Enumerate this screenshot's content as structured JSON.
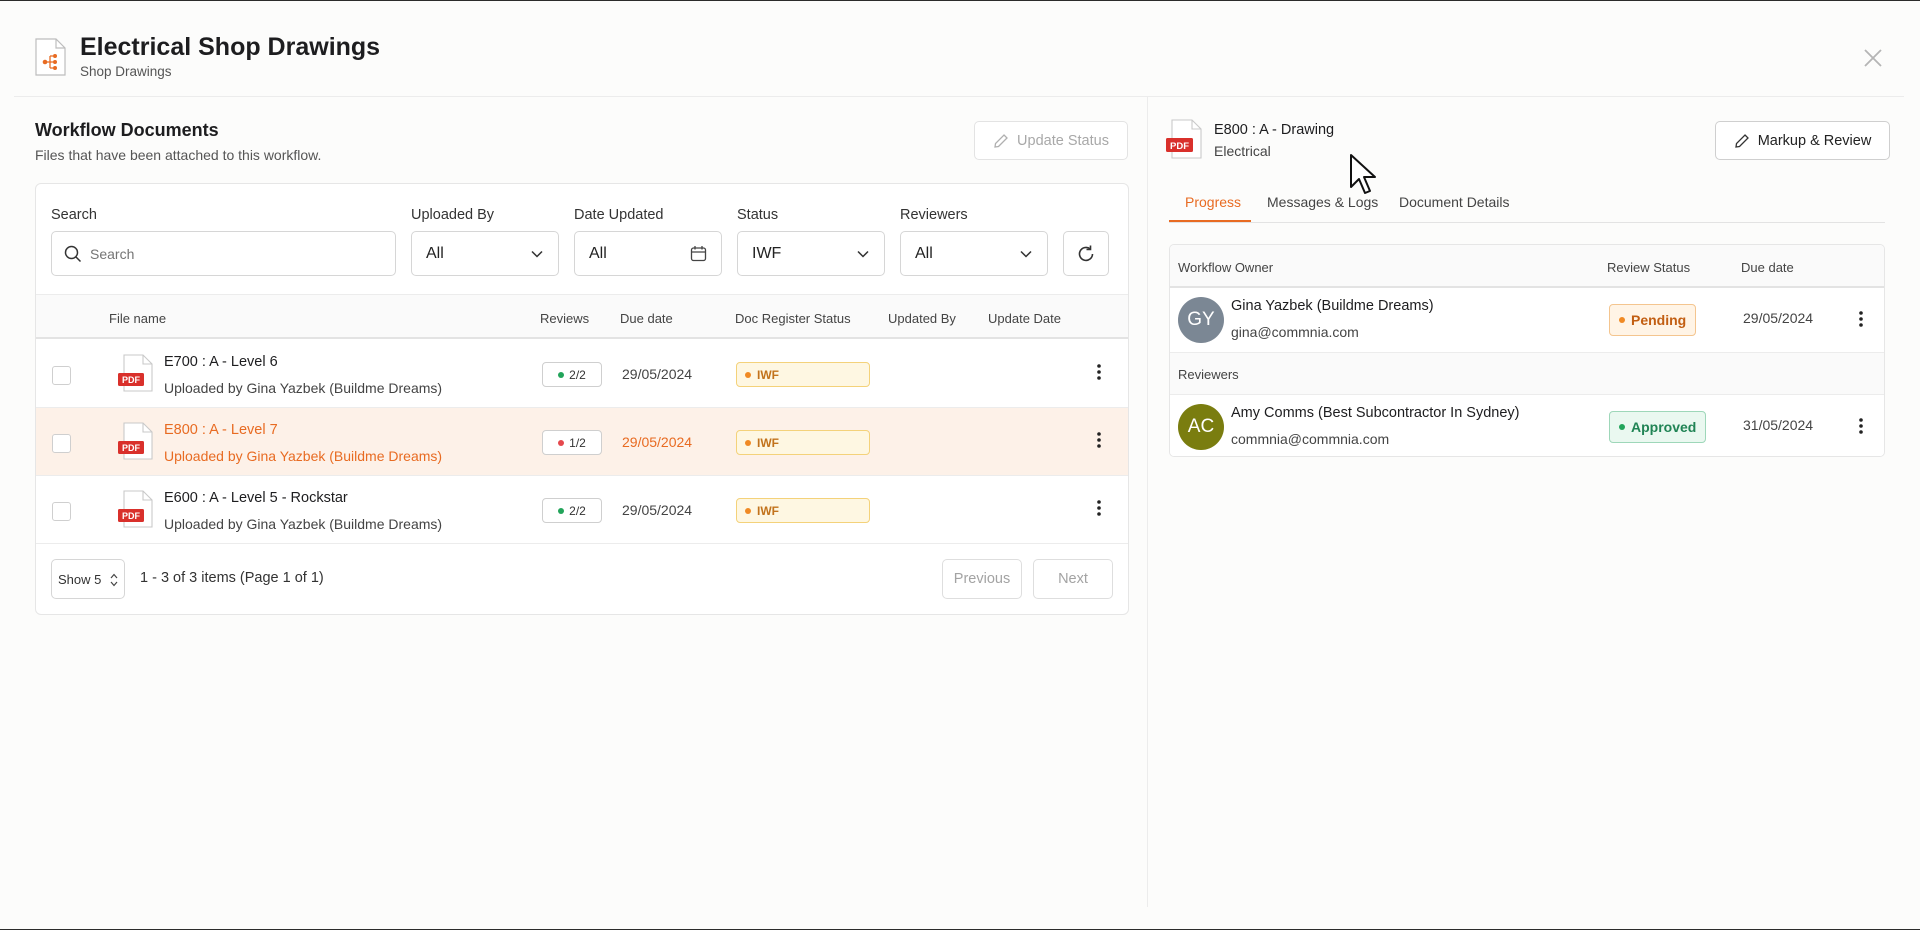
{
  "header": {
    "title": "Electrical Shop Drawings",
    "subtitle": "Shop Drawings"
  },
  "workflow": {
    "title": "Workflow Documents",
    "subtitle": "Files that have been attached to this workflow.",
    "update_status_label": "Update Status"
  },
  "filters": {
    "search_label": "Search",
    "search_placeholder": "Search",
    "uploaded_by_label": "Uploaded By",
    "uploaded_by_value": "All",
    "date_updated_label": "Date Updated",
    "date_updated_value": "All",
    "status_label": "Status",
    "status_value": "IWF",
    "reviewers_label": "Reviewers",
    "reviewers_value": "All"
  },
  "table": {
    "columns": [
      "File name",
      "Reviews",
      "Due date",
      "Doc Register Status",
      "Updated By",
      "Update Date"
    ],
    "rows": [
      {
        "name": "E700 : A - Level 6",
        "uploaded": "Uploaded by Gina Yazbek (Buildme Dreams)",
        "reviews": "2/2",
        "review_dot": "#22a45a",
        "due": "29/05/2024",
        "status": "IWF",
        "selected": false
      },
      {
        "name": "E800 : A - Level 7",
        "uploaded": "Uploaded by Gina Yazbek (Buildme Dreams)",
        "reviews": "1/2",
        "review_dot": "#e5484d",
        "due": "29/05/2024",
        "status": "IWF",
        "selected": true
      },
      {
        "name": "E600 : A - Level 5 - Rockstar",
        "uploaded": "Uploaded by Gina Yazbek (Buildme Dreams)",
        "reviews": "2/2",
        "review_dot": "#22a45a",
        "due": "29/05/2024",
        "status": "IWF",
        "selected": false
      }
    ]
  },
  "pager": {
    "page_size": "Show 5",
    "info": "1 - 3 of 3 items (Page 1 of 1)",
    "previous": "Previous",
    "next": "Next"
  },
  "detail": {
    "file_title": "E800 : A - Drawing",
    "file_sub": "Electrical",
    "markup_label": "Markup & Review",
    "tabs": [
      "Progress",
      "Messages & Logs",
      "Document Details"
    ],
    "columns": [
      "Workflow Owner",
      "Review Status",
      "Due date"
    ],
    "owner": {
      "initials": "GY",
      "name": "Gina Yazbek (Buildme Dreams)",
      "email": "gina@commnia.com",
      "status": "Pending",
      "due": "29/05/2024",
      "avatar_color": "#7b8794"
    },
    "reviewers_label": "Reviewers",
    "reviewer": {
      "initials": "AC",
      "name": "Amy Comms (Best Subcontractor In Sydney)",
      "email": "commnia@commnia.com",
      "status": "Approved",
      "due": "31/05/2024",
      "avatar_color": "#7a7d0f"
    }
  },
  "colors": {
    "accent": "#e86b22",
    "pending": "#f08a24",
    "approved": "#22a45a",
    "pdf_red": "#d9302b"
  }
}
